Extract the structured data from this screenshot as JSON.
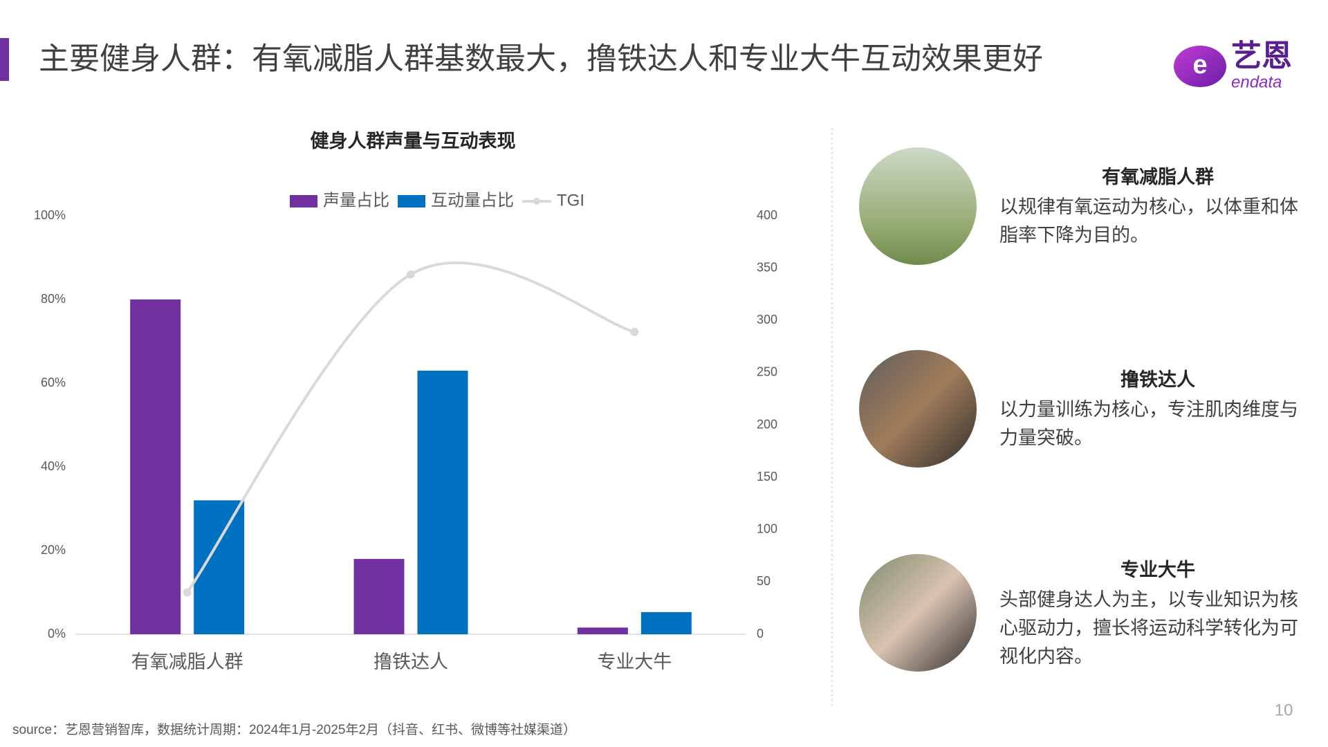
{
  "header": {
    "title": "主要健身人群：有氧减脂人群基数最大，撸铁达人和专业大牛互动效果更好"
  },
  "logo": {
    "name": "艺恩",
    "sub": "endata"
  },
  "chart_data": {
    "type": "bar",
    "title": "健身人群声量与互动表现",
    "categories": [
      "有氧减脂人群",
      "撸铁达人",
      "专业大牛"
    ],
    "series": [
      {
        "name": "声量占比",
        "color": "#7030a0",
        "values": [
          80,
          18,
          1.6
        ]
      },
      {
        "name": "互动量占比",
        "color": "#0070c0",
        "values": [
          32,
          63,
          5.3
        ]
      },
      {
        "name": "TGI",
        "color": "#d9d9d9",
        "type": "line",
        "axis": "y2",
        "values": [
          40,
          344,
          289
        ]
      }
    ],
    "ylim": [
      0,
      100
    ],
    "yticks": [
      {
        "value": 0,
        "label": "0%"
      },
      {
        "value": 20,
        "label": "20%"
      },
      {
        "value": 40,
        "label": "40%"
      },
      {
        "value": 60,
        "label": "60%"
      },
      {
        "value": 80,
        "label": "80%"
      },
      {
        "value": 100,
        "label": "100%"
      }
    ],
    "y2lim": [
      0,
      400
    ],
    "y2ticks": [
      0,
      50,
      100,
      150,
      200,
      250,
      300,
      350,
      400
    ],
    "grid": false,
    "legend": "top"
  },
  "panels": [
    {
      "title": "有氧减脂人群",
      "text": [
        "以规律有氧运动为核心，以体重和体",
        "脂率下降为目的。"
      ]
    },
    {
      "title": "撸铁达人",
      "text": [
        "以力量训练为核心，专注肌肉维度与",
        "力量突破。"
      ]
    },
    {
      "title": "专业大牛",
      "text": [
        "头部健身达人为主，以专业知识为核",
        "心驱动力，擅长将运动科学转化为可",
        "视化内容。"
      ]
    }
  ],
  "source": "source：艺恩营销智库，数据统计周期：2024年1月-2025年2月（抖音、红书、微博等社媒渠道）",
  "page_number": "10"
}
